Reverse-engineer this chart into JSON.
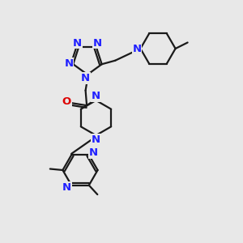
{
  "bg_color": "#e8e8e8",
  "bond_color": "#1a1a1a",
  "N_color": "#2020ff",
  "O_color": "#dd0000",
  "line_width": 1.6,
  "font_size": 9.5,
  "fig_size": [
    3.0,
    3.0
  ],
  "dpi": 100,
  "xlim": [
    0,
    10
  ],
  "ylim": [
    0,
    10
  ]
}
